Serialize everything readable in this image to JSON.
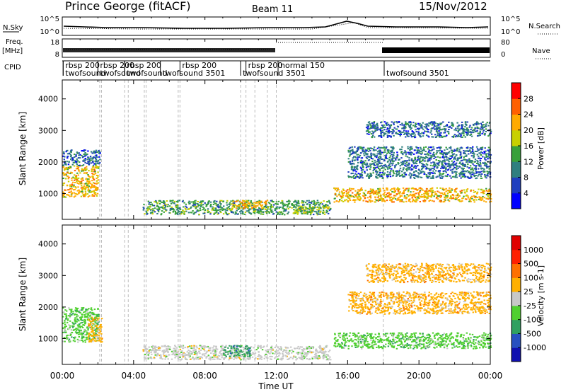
{
  "header": {
    "title": "Prince George (fitACF)",
    "beam": "Beam 11",
    "date": "15/Nov/2012"
  },
  "strip_labels": {
    "nsky": "N.Sky",
    "freq_line1": "Freq.",
    "freq_line2": "[MHz]",
    "cpid": "CPID",
    "nsearch": "N.Search",
    "nave": "Nave"
  },
  "noise_axis": {
    "left_ticks": [
      "10^5",
      "10^0"
    ],
    "right_ticks": [
      "10^5",
      "10^0"
    ]
  },
  "freq_axis": {
    "left_ticks": [
      "18",
      "8"
    ],
    "right_ticks": [
      "80",
      "0"
    ]
  },
  "cpid_entries": [
    {
      "label": "rbsp 200",
      "hour": 0.05,
      "row": 0
    },
    {
      "label": "twofsound",
      "hour": 0.05,
      "row": 1
    },
    {
      "label": "rbsp 200",
      "hour": 2.0,
      "row": 0
    },
    {
      "label": "twofsound",
      "hour": 2.0,
      "row": 1
    },
    {
      "label": "rbsp 200",
      "hour": 3.5,
      "row": 0
    },
    {
      "label": "twofsound",
      "hour": 3.5,
      "row": 1
    },
    {
      "label": "rbsp 200",
      "hour": 6.6,
      "row": 0
    },
    {
      "label": "twofsound 3501",
      "hour": 5.5,
      "row": 1
    },
    {
      "label": "rbsp 200",
      "hour": 10.3,
      "row": 0
    },
    {
      "label": "twofsound 3501",
      "hour": 10.0,
      "row": 1
    },
    {
      "label": "normal 150",
      "hour": 12.1,
      "row": 0
    },
    {
      "label": "twofsound 3501",
      "hour": 18.05,
      "row": 1
    }
  ],
  "chart_data": [
    {
      "type": "heatmap",
      "panel": "power",
      "ylabel": "Slant Range [km]",
      "ylim": [
        180,
        4600
      ],
      "yticks": [
        1000,
        2000,
        3000,
        4000
      ],
      "xlim": [
        0,
        24
      ],
      "colorbar": {
        "label": "Power [dB]",
        "range": [
          0,
          32
        ],
        "ticks": [
          4,
          8,
          12,
          16,
          20,
          24,
          28
        ],
        "colors": [
          "#0000ff",
          "#1f3fbf",
          "#2f7f7f",
          "#38a03a",
          "#c8d000",
          "#ffaa00",
          "#ff6000",
          "#ff0000"
        ]
      },
      "echo_regions": [
        {
          "t": [
            0.0,
            2.0
          ],
          "r": [
            900,
            1900
          ],
          "power_db": 22
        },
        {
          "t": [
            0.0,
            2.1
          ],
          "r": [
            1900,
            2400
          ],
          "power_db": 10
        },
        {
          "t": [
            4.5,
            15.0
          ],
          "r": [
            350,
            800
          ],
          "power_db": 12
        },
        {
          "t": [
            9.5,
            11.5
          ],
          "r": [
            550,
            800
          ],
          "power_db": 20
        },
        {
          "t": [
            13.0,
            15.0
          ],
          "r": [
            400,
            600
          ],
          "power_db": 18
        },
        {
          "t": [
            15.2,
            24.0
          ],
          "r": [
            750,
            1200
          ],
          "power_db": 22
        },
        {
          "t": [
            16.0,
            24.0
          ],
          "r": [
            1500,
            2500
          ],
          "power_db": 10
        },
        {
          "t": [
            17.0,
            24.0
          ],
          "r": [
            2800,
            3300
          ],
          "power_db": 8
        }
      ]
    },
    {
      "type": "heatmap",
      "panel": "velocity",
      "ylabel": "Slant Range [km]",
      "ylim": [
        180,
        4600
      ],
      "yticks": [
        1000,
        2000,
        3000,
        4000
      ],
      "xlim": [
        0,
        24
      ],
      "xlabel": "Time UT",
      "xticks": [
        "00:00",
        "04:00",
        "08:00",
        "12:00",
        "16:00",
        "20:00",
        "00:00"
      ],
      "colorbar": {
        "label": "Velocity [m s-1]",
        "ticks": [
          "1000",
          "500",
          "100",
          "25",
          "-25",
          "-100",
          "-500",
          "-1000"
        ],
        "colors": [
          "#1010b0",
          "#2850c0",
          "#30a060",
          "#50d030",
          "#c8c8c8",
          "#ffb000",
          "#ff7000",
          "#ff2000",
          "#e00000"
        ]
      },
      "echo_regions": [
        {
          "t": [
            0.0,
            2.0
          ],
          "r": [
            900,
            2000
          ],
          "velocity": 0
        },
        {
          "t": [
            1.4,
            2.2
          ],
          "r": [
            900,
            1700
          ],
          "velocity": -300
        },
        {
          "t": [
            4.5,
            15.0
          ],
          "r": [
            350,
            800
          ],
          "velocity": -60
        },
        {
          "t": [
            9.0,
            10.5
          ],
          "r": [
            450,
            800
          ],
          "velocity": 80
        },
        {
          "t": [
            15.2,
            24.0
          ],
          "r": [
            700,
            1200
          ],
          "velocity": 0
        },
        {
          "t": [
            16.0,
            24.0
          ],
          "r": [
            1800,
            2500
          ],
          "velocity": -300
        },
        {
          "t": [
            17.0,
            24.0
          ],
          "r": [
            2800,
            3400
          ],
          "velocity": -300
        }
      ]
    }
  ]
}
